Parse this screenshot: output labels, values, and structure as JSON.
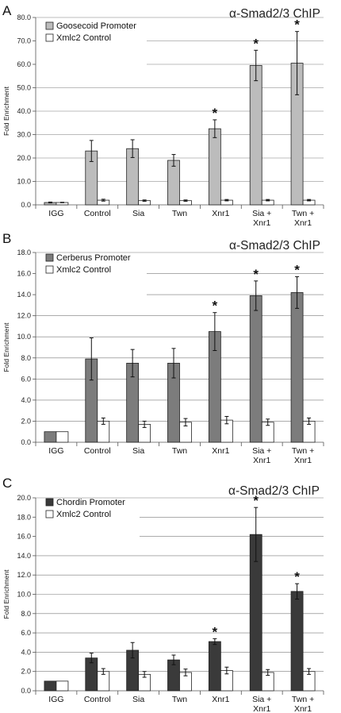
{
  "chart_data": [
    {
      "type": "bar",
      "panel_label": "A",
      "annotation": "α-Smad2/3 ChIP",
      "ylabel": "Fold Enrichment",
      "ylim": [
        0,
        80
      ],
      "yticks": [
        "0.0",
        "10.0",
        "20.0",
        "30.0",
        "40.0",
        "50.0",
        "60.0",
        "70.0",
        "80.0"
      ],
      "grid": true,
      "legend_position": "top-left",
      "categories": [
        [
          "IGG"
        ],
        [
          "Control"
        ],
        [
          "Sia"
        ],
        [
          "Twn"
        ],
        [
          "Xnr1"
        ],
        [
          "Sia +",
          "Xnr1"
        ],
        [
          "Twn +",
          "Xnr1"
        ]
      ],
      "significant": [
        false,
        false,
        false,
        false,
        true,
        true,
        true
      ],
      "series": [
        {
          "name": "Goosecoid Promoter",
          "color": "#bcbcbc",
          "values": [
            1,
            23,
            24,
            19,
            32.5,
            59.5,
            60.5
          ],
          "errors": [
            0.2,
            4.5,
            3.8,
            2.5,
            3.8,
            6.5,
            13.5
          ]
        },
        {
          "name": "Xmlc2 Control",
          "color": "#ffffff",
          "values": [
            1,
            2,
            1.8,
            1.8,
            2,
            2,
            2
          ],
          "errors": [
            0.1,
            0.4,
            0.3,
            0.3,
            0.3,
            0.3,
            0.3
          ]
        }
      ]
    },
    {
      "type": "bar",
      "panel_label": "B",
      "annotation": "α-Smad2/3 ChIP",
      "ylabel": "Fold Enrichment",
      "ylim": [
        0,
        18
      ],
      "yticks": [
        "0.0",
        "2.0",
        "4.0",
        "6.0",
        "8.0",
        "10.0",
        "12.0",
        "14.0",
        "16.0",
        "18.0"
      ],
      "grid": true,
      "legend_position": "top-left",
      "categories": [
        [
          "IGG"
        ],
        [
          "Control"
        ],
        [
          "Sia"
        ],
        [
          "Twn"
        ],
        [
          "Xnr1"
        ],
        [
          "Sia +",
          "Xnr1"
        ],
        [
          "Twn +",
          "Xnr1"
        ]
      ],
      "significant": [
        false,
        false,
        false,
        false,
        true,
        true,
        true
      ],
      "series": [
        {
          "name": "Cerberus Promoter",
          "color": "#7c7c7c",
          "values": [
            1,
            7.9,
            7.5,
            7.5,
            10.5,
            13.9,
            14.2
          ],
          "errors": [
            0.05,
            2.0,
            1.3,
            1.4,
            1.8,
            1.4,
            1.5
          ]
        },
        {
          "name": "Xmlc2 Control",
          "color": "#ffffff",
          "values": [
            1,
            2.0,
            1.7,
            1.9,
            2.1,
            1.9,
            2.0
          ],
          "errors": [
            0.05,
            0.3,
            0.3,
            0.35,
            0.35,
            0.3,
            0.3
          ]
        }
      ]
    },
    {
      "type": "bar",
      "panel_label": "C",
      "annotation": "α-Smad2/3 ChIP",
      "ylabel": "Fold Enrichment",
      "ylim": [
        0,
        20
      ],
      "yticks": [
        "0.0",
        "2.0",
        "4.0",
        "6.0",
        "8.0",
        "10.0",
        "12.0",
        "14.0",
        "16.0",
        "18.0",
        "20.0"
      ],
      "grid": true,
      "legend_position": "top-left",
      "categories": [
        [
          "IGG"
        ],
        [
          "Control"
        ],
        [
          "Sia"
        ],
        [
          "Twn"
        ],
        [
          "Xnr1"
        ],
        [
          "Sia +",
          "Xnr1"
        ],
        [
          "Twn +",
          "Xnr1"
        ]
      ],
      "significant": [
        false,
        false,
        false,
        false,
        true,
        true,
        true
      ],
      "series": [
        {
          "name": "Chordin Promoter",
          "color": "#3a3a3a",
          "values": [
            1,
            3.4,
            4.2,
            3.2,
            5.1,
            16.2,
            10.3
          ],
          "errors": [
            0.05,
            0.5,
            0.8,
            0.5,
            0.3,
            2.8,
            0.8
          ]
        },
        {
          "name": "Xmlc2 Control",
          "color": "#ffffff",
          "values": [
            1,
            2.0,
            1.7,
            1.9,
            2.1,
            1.9,
            2.0
          ],
          "errors": [
            0.05,
            0.3,
            0.3,
            0.35,
            0.35,
            0.3,
            0.3
          ]
        }
      ]
    }
  ]
}
